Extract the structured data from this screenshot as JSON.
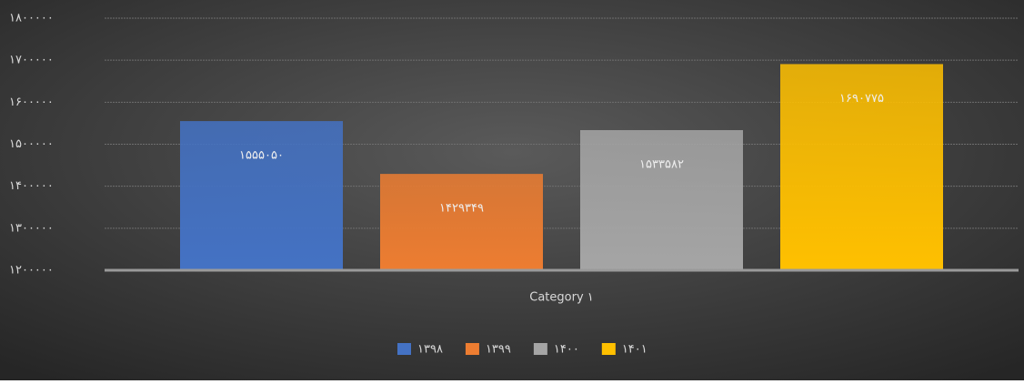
{
  "chart_data": {
    "type": "bar",
    "categories": [
      "Category ۱"
    ],
    "series": [
      {
        "name": "۱۳۹۸",
        "color": "#4472c4",
        "values": [
          1555050
        ],
        "value_labels": [
          "۱۵۵۵۰۵۰"
        ]
      },
      {
        "name": "۱۳۹۹",
        "color": "#ed7d31",
        "values": [
          1429349
        ],
        "value_labels": [
          "۱۴۲۹۳۴۹"
        ]
      },
      {
        "name": "۱۴۰۰",
        "color": "#a5a5a5",
        "values": [
          1533582
        ],
        "value_labels": [
          "۱۵۳۳۵۸۲"
        ]
      },
      {
        "name": "۱۴۰۱",
        "color": "#ffc000",
        "values": [
          1690775
        ],
        "value_labels": [
          "۱۶۹۰۷۷۵"
        ]
      }
    ],
    "ylim": [
      1200000,
      1800000
    ],
    "yticks": [
      {
        "value": 1200000,
        "label": "۱۲۰۰۰۰۰"
      },
      {
        "value": 1300000,
        "label": "۱۳۰۰۰۰۰"
      },
      {
        "value": 1400000,
        "label": "۱۴۰۰۰۰۰"
      },
      {
        "value": 1500000,
        "label": "۱۵۰۰۰۰۰"
      },
      {
        "value": 1600000,
        "label": "۱۶۰۰۰۰۰"
      },
      {
        "value": 1700000,
        "label": "۱۷۰۰۰۰۰"
      },
      {
        "value": 1800000,
        "label": "۱۸۰۰۰۰۰"
      }
    ],
    "grid": true,
    "legend": "bottom"
  }
}
